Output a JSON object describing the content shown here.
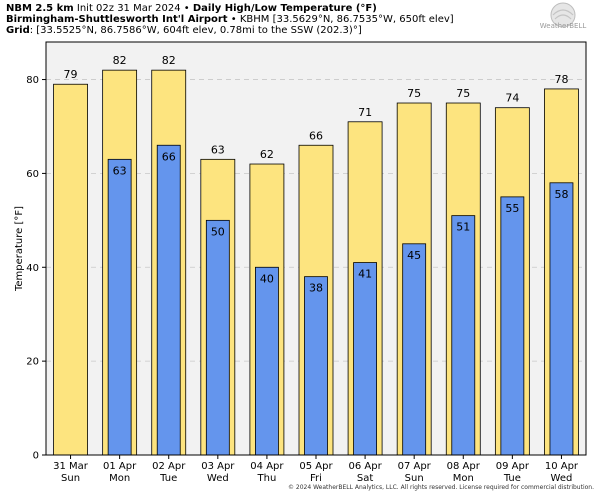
{
  "header": {
    "line1_bold1": "NBM 2.5 km",
    "line1_text1": " Init 02z 31 Mar 2024 • ",
    "line1_bold2": "Daily High/Low Temperature (°F)",
    "line2_bold": "Birmingham-Shuttlesworth Int'l Airport",
    "line2_text": " • KBHM [33.5629°N, 86.7535°W, 650ft elev]",
    "line3_bold": "Grid",
    "line3_text": ": [33.5525°N, 86.7586°W, 604ft elev, 0.78mi to the SSW (202.3)°]"
  },
  "logo": {
    "text": "WeatherBELL"
  },
  "copyright": "© 2024 WeatherBELL Analytics, LLC. All rights reserved. License required for commercial distribution.",
  "colors": {
    "high": "#fde47f",
    "low": "#6495ed",
    "edge": "#000000",
    "plot_bg": "#f2f2f2",
    "grid": "#c8c8c8"
  },
  "chart_data": {
    "type": "bar",
    "ylabel": "Temperature [°F]",
    "ylim": [
      0,
      88
    ],
    "yticks": [
      0,
      20,
      40,
      60,
      80
    ],
    "grid": true,
    "categories": [
      {
        "date": "31 Mar",
        "day": "Sun"
      },
      {
        "date": "01 Apr",
        "day": "Mon"
      },
      {
        "date": "02 Apr",
        "day": "Tue"
      },
      {
        "date": "03 Apr",
        "day": "Wed"
      },
      {
        "date": "04 Apr",
        "day": "Thu"
      },
      {
        "date": "05 Apr",
        "day": "Fri"
      },
      {
        "date": "06 Apr",
        "day": "Sat"
      },
      {
        "date": "07 Apr",
        "day": "Sun"
      },
      {
        "date": "08 Apr",
        "day": "Mon"
      },
      {
        "date": "09 Apr",
        "day": "Tue"
      },
      {
        "date": "10 Apr",
        "day": "Wed"
      }
    ],
    "series": [
      {
        "key": "high",
        "values": [
          79,
          82,
          82,
          63,
          62,
          66,
          71,
          75,
          75,
          74,
          78
        ]
      },
      {
        "key": "low",
        "values": [
          null,
          63,
          66,
          50,
          40,
          38,
          41,
          45,
          51,
          55,
          58
        ]
      }
    ]
  }
}
